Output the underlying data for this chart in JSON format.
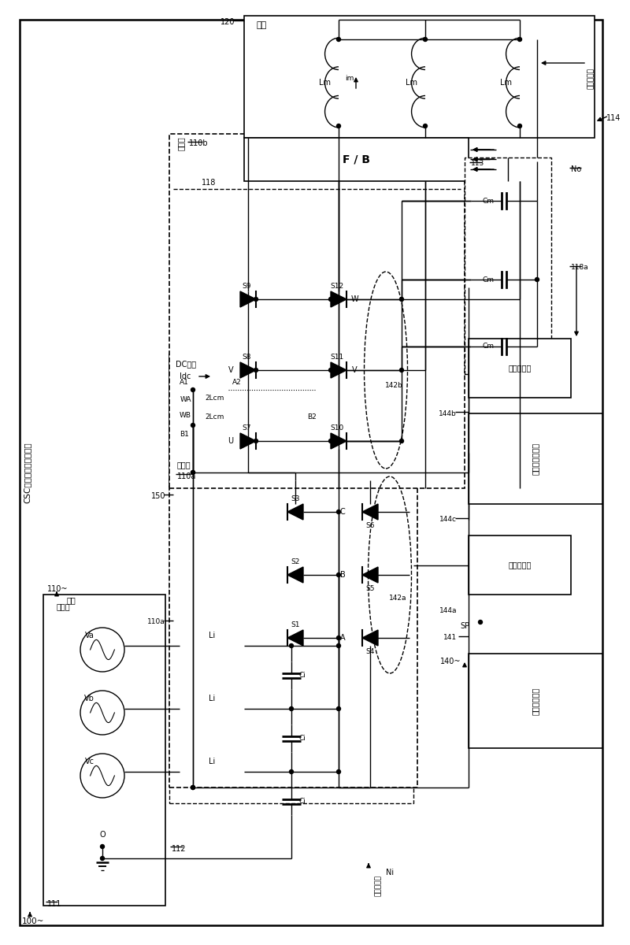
{
  "bg": "#ffffff",
  "fig_w": 8.0,
  "fig_h": 12.0,
  "labels": {
    "csc": "CSC可变频率电机驱动器",
    "motor": "电机",
    "power": "电压源",
    "source_box": "电源",
    "dc_link": "DC链路",
    "idc": "Idc",
    "rectifier": "整流器",
    "inverter": "逆变器",
    "inv_ctrl": "逆变器控制",
    "rect_ctrl": "整流器控制",
    "cap_fault": "电容器故障检测",
    "sw_ctrl": "开关控制系笯",
    "out_neutral": "输出中性点",
    "in_neutral": "输入中性点"
  }
}
